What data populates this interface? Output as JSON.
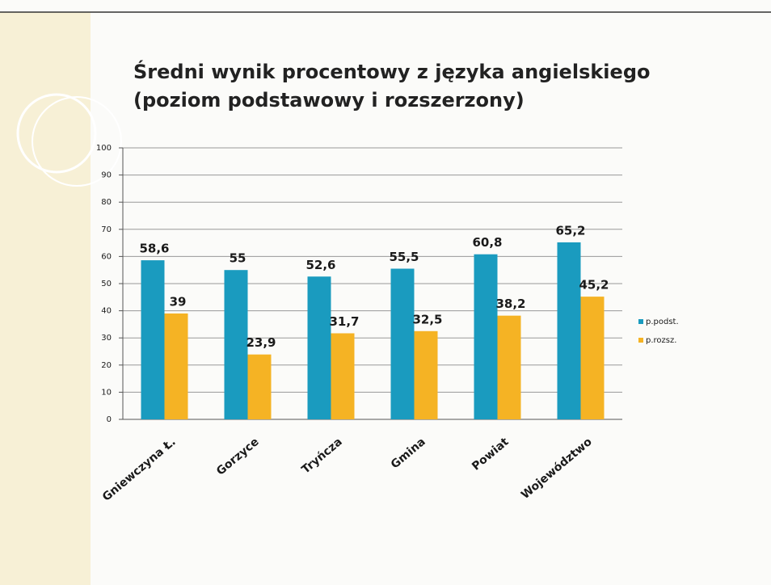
{
  "chart_data": {
    "type": "bar",
    "title": "Średni wynik procentowy z języka angielskiego",
    "subtitle": "(poziom podstawowy i rozszerzony)",
    "categories": [
      "Gniewczyna Ł.",
      "Gorzyce",
      "Tryńcza",
      "Gmina",
      "Powiat",
      "Województwo"
    ],
    "series": [
      {
        "name": "p.podst.",
        "color": "#1a9bbf",
        "values": [
          58.6,
          55,
          52.6,
          55.5,
          60.8,
          65.2
        ],
        "value_labels": [
          "58,6",
          "55",
          "52,6",
          "55,5",
          "60,8",
          "65,2"
        ]
      },
      {
        "name": "p.rozsz.",
        "color": "#f5b324",
        "values": [
          39,
          23.9,
          31.7,
          32.5,
          38.2,
          45.2
        ],
        "value_labels": [
          "39",
          "23,9",
          "31,7",
          "32,5",
          "38,2",
          "45,2"
        ]
      }
    ],
    "ylim": [
      0,
      100
    ],
    "yticks": [
      0,
      10,
      20,
      30,
      40,
      50,
      60,
      70,
      80,
      90,
      100
    ],
    "grid": true,
    "legend": "right"
  }
}
